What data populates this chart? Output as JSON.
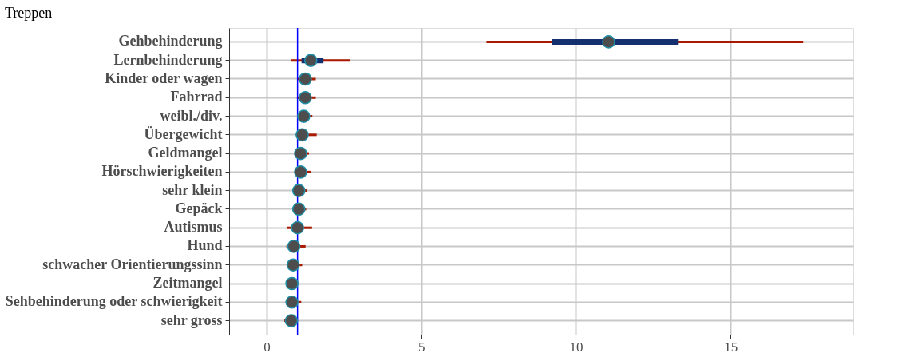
{
  "chart_data": {
    "type": "scatter",
    "title": "Treppen",
    "orientation": "horizontal",
    "categories": [
      "Gehbehinderung",
      "Lernbehinderung",
      "Kinder oder wagen",
      "Fahrrad",
      "weibl./div.",
      "Übergewicht",
      "Geldmangel",
      "Hörschwierigkeiten",
      "sehr klein",
      "Gepäck",
      "Autismus",
      "Hund",
      "schwacher Orientierungssinn",
      "Zeitmangel",
      "Sehbehinderung oder schwierigkeit",
      "sehr gross"
    ],
    "series": [
      {
        "type": "bar",
        "color": "#14306e",
        "base": [
          9.23,
          1.13,
          null,
          null,
          null,
          null,
          null,
          null,
          null,
          null,
          null,
          null,
          null,
          null,
          null,
          null
        ],
        "values": [
          4.07,
          0.71,
          null,
          null,
          null,
          null,
          null,
          null,
          null,
          null,
          null,
          null,
          null,
          null,
          null,
          null
        ]
      },
      {
        "color": "#4d4d4d",
        "values": [
          11.06,
          1.43,
          1.25,
          1.25,
          1.2,
          1.15,
          1.1,
          1.1,
          1.04,
          1.04,
          1.0,
          0.88,
          0.86,
          0.82,
          0.82,
          0.8
        ],
        "errors": [
          [
            7.11,
            17.35
          ],
          [
            0.79,
            2.7
          ],
          [
            1.0,
            1.59
          ],
          [
            0.98,
            1.59
          ],
          [
            0.99,
            1.48
          ],
          [
            0.95,
            1.62
          ],
          [
            0.9,
            1.37
          ],
          [
            0.9,
            1.43
          ],
          [
            0.85,
            1.31
          ],
          [
            0.85,
            1.28
          ],
          [
            0.65,
            1.47
          ],
          [
            0.64,
            1.26
          ],
          [
            0.65,
            1.15
          ],
          null,
          [
            0.62,
            1.12
          ],
          [
            0.57,
            0.95
          ]
        ]
      }
    ],
    "xlim": [
      -1.21,
      18.97
    ],
    "xticks": [
      0,
      5,
      10,
      15
    ],
    "grid": true,
    "marker": "circle",
    "ref_lines": [
      {
        "axis": "x",
        "value": 1,
        "color": "#0000ff"
      }
    ]
  }
}
